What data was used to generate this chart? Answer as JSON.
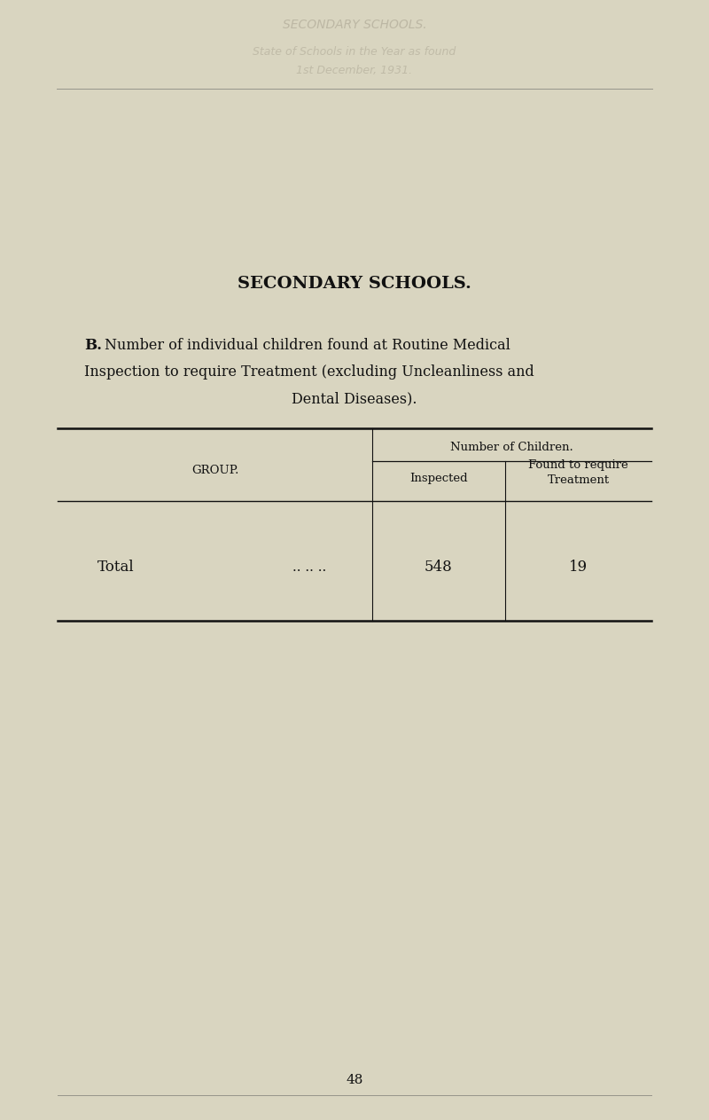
{
  "bg_color": "#d9d5c0",
  "page_number": "48",
  "secondary_schools_title": "SECONDARY SCHOOLS.",
  "section_label": "B.",
  "section_text_line1": "Number of individual children found at Routine Medical",
  "section_text_line2": "Inspection to require Treatment (excluding Uncleanliness and",
  "section_text_line3": "Dental Diseases).",
  "col_header_top": "Number of Children.",
  "col_group": "GROUP.",
  "col_inspected": "Inspected",
  "col_found": "Found to require\nTreatment",
  "row_label": "Total",
  "row_dots": ".. .. ..",
  "row_inspected": "548",
  "row_found": "19",
  "title_fontsize": 13,
  "body_fontsize": 11,
  "table_fontsize": 10,
  "header_ghost_text1": "SECONDARY SCHOOLS.",
  "header_ghost_text2": "State of Schools in the Year as found",
  "header_ghost_text3": "1st December, 1931."
}
